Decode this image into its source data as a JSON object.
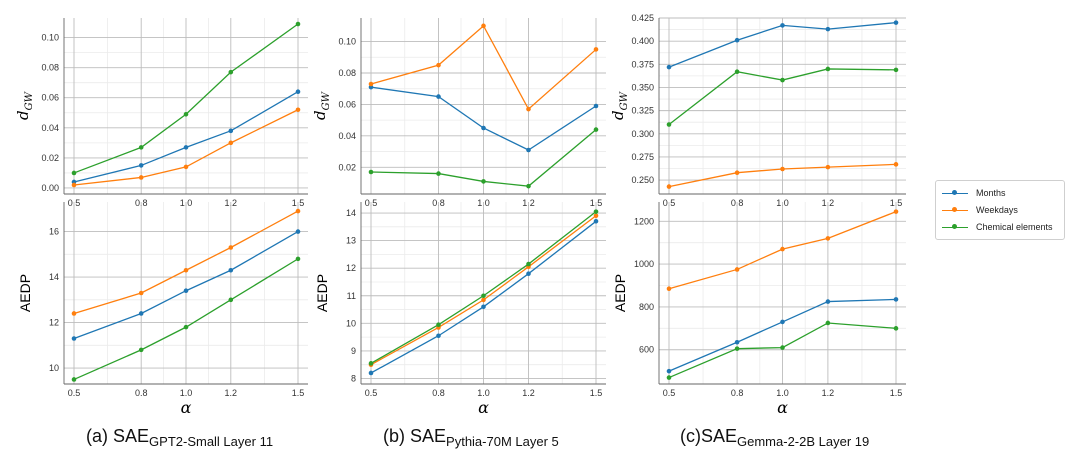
{
  "colors": {
    "months": "#1f77b4",
    "weekdays": "#ff7f0e",
    "chemical": "#2ca02c",
    "grid_major": "#bdbdbd",
    "grid_minor": "#ebebeb"
  },
  "legend": [
    {
      "label": "Months",
      "color": "#1f77b4"
    },
    {
      "label": "Weekdays",
      "color": "#ff7f0e"
    },
    {
      "label": "Chemical elements",
      "color": "#2ca02c"
    }
  ],
  "captions": [
    {
      "prefix": "(a) SAE",
      "sub": "GPT2-Small Layer 11"
    },
    {
      "prefix": "(b) SAE",
      "sub": "Pythia-70M Layer 5"
    },
    {
      "prefix": "(c)SAE",
      "sub": "Gemma-2-2B Layer 19"
    }
  ],
  "chart_data": [
    {
      "type": "line",
      "panel": "a-top",
      "xlabel": "α",
      "ylabel_main": "d",
      "ylabel_sub": "GW",
      "x": [
        0.5,
        0.8,
        1.0,
        1.2,
        1.5
      ],
      "xticks": [
        "0.5",
        "0.8",
        "1.0",
        "1.2",
        "1.5"
      ],
      "ylim": [
        -0.004,
        0.113
      ],
      "yticks": [
        0.0,
        0.02,
        0.04,
        0.06,
        0.08,
        0.1
      ],
      "yticklabels": [
        "0.00",
        "0.02",
        "0.04",
        "0.06",
        "0.08",
        "0.10"
      ],
      "series": [
        {
          "name": "Months",
          "values": [
            0.004,
            0.015,
            0.027,
            0.038,
            0.064
          ]
        },
        {
          "name": "Weekdays",
          "values": [
            0.002,
            0.007,
            0.014,
            0.03,
            0.052
          ]
        },
        {
          "name": "Chemical elements",
          "values": [
            0.01,
            0.027,
            0.049,
            0.077,
            0.109
          ]
        }
      ]
    },
    {
      "type": "line",
      "panel": "a-bottom",
      "xlabel": "α",
      "ylabel_main": "AEDP",
      "ylabel_sub": "",
      "x": [
        0.5,
        0.8,
        1.0,
        1.2,
        1.5
      ],
      "xticks": [
        "0.5",
        "0.8",
        "1.0",
        "1.2",
        "1.5"
      ],
      "ylim": [
        9.3,
        17.3
      ],
      "yticks": [
        10,
        12,
        14,
        16
      ],
      "yticklabels": [
        "10",
        "12",
        "14",
        "16"
      ],
      "series": [
        {
          "name": "Months",
          "values": [
            11.3,
            12.4,
            13.4,
            14.3,
            16.0
          ]
        },
        {
          "name": "Weekdays",
          "values": [
            12.4,
            13.3,
            14.3,
            15.3,
            16.9
          ]
        },
        {
          "name": "Chemical elements",
          "values": [
            9.5,
            10.8,
            11.8,
            13.0,
            14.8
          ]
        }
      ]
    },
    {
      "type": "line",
      "panel": "b-top",
      "xlabel": "α",
      "ylabel_main": "d",
      "ylabel_sub": "GW",
      "x": [
        0.5,
        0.8,
        1.0,
        1.2,
        1.5
      ],
      "xticks": [
        "0.5",
        "0.8",
        "1.0",
        "1.2",
        "1.5"
      ],
      "ylim": [
        0.003,
        0.115
      ],
      "yticks": [
        0.02,
        0.04,
        0.06,
        0.08,
        0.1
      ],
      "yticklabels": [
        "0.02",
        "0.04",
        "0.06",
        "0.08",
        "0.10"
      ],
      "series": [
        {
          "name": "Months",
          "values": [
            0.071,
            0.065,
            0.045,
            0.031,
            0.059
          ]
        },
        {
          "name": "Weekdays",
          "values": [
            0.073,
            0.085,
            0.11,
            0.057,
            0.095
          ]
        },
        {
          "name": "Chemical elements",
          "values": [
            0.017,
            0.016,
            0.011,
            0.008,
            0.044
          ]
        }
      ]
    },
    {
      "type": "line",
      "panel": "b-bottom",
      "xlabel": "α",
      "ylabel_main": "AEDP",
      "ylabel_sub": "",
      "x": [
        0.5,
        0.8,
        1.0,
        1.2,
        1.5
      ],
      "xticks": [
        "0.5",
        "0.8",
        "1.0",
        "1.2",
        "1.5"
      ],
      "ylim": [
        7.8,
        14.4
      ],
      "yticks": [
        8,
        9,
        10,
        11,
        12,
        13,
        14
      ],
      "yticklabels": [
        "8",
        "9",
        "10",
        "11",
        "12",
        "13",
        "14"
      ],
      "series": [
        {
          "name": "Months",
          "values": [
            8.2,
            9.55,
            10.6,
            11.8,
            13.7
          ]
        },
        {
          "name": "Weekdays",
          "values": [
            8.5,
            9.85,
            10.85,
            12.05,
            13.9
          ]
        },
        {
          "name": "Chemical elements",
          "values": [
            8.55,
            9.95,
            11.0,
            12.15,
            14.05
          ]
        }
      ]
    },
    {
      "type": "line",
      "panel": "c-top",
      "xlabel": "α",
      "ylabel_main": "d",
      "ylabel_sub": "GW",
      "x": [
        0.5,
        0.8,
        1.0,
        1.2,
        1.5
      ],
      "xticks": [
        "0.5",
        "0.8",
        "1.0",
        "1.2",
        "1.5"
      ],
      "ylim": [
        0.235,
        0.425
      ],
      "yticks": [
        0.25,
        0.275,
        0.3,
        0.325,
        0.35,
        0.375,
        0.4,
        0.425
      ],
      "yticklabels": [
        "0.250",
        "0.275",
        "0.300",
        "0.325",
        "0.350",
        "0.375",
        "0.400",
        "0.425"
      ],
      "series": [
        {
          "name": "Months",
          "values": [
            0.372,
            0.401,
            0.417,
            0.413,
            0.42
          ]
        },
        {
          "name": "Weekdays",
          "values": [
            0.243,
            0.258,
            0.262,
            0.264,
            0.267
          ]
        },
        {
          "name": "Chemical elements",
          "values": [
            0.31,
            0.367,
            0.358,
            0.37,
            0.369
          ]
        }
      ]
    },
    {
      "type": "line",
      "panel": "c-bottom",
      "xlabel": "α",
      "ylabel_main": "AEDP",
      "ylabel_sub": "",
      "x": [
        0.5,
        0.8,
        1.0,
        1.2,
        1.5
      ],
      "xticks": [
        "0.5",
        "0.8",
        "1.0",
        "1.2",
        "1.5"
      ],
      "ylim": [
        440,
        1290
      ],
      "yticks": [
        600,
        800,
        1000,
        1200
      ],
      "yticklabels": [
        "600",
        "800",
        "1000",
        "1200"
      ],
      "series": [
        {
          "name": "Months",
          "values": [
            500,
            635,
            730,
            825,
            835
          ]
        },
        {
          "name": "Weekdays",
          "values": [
            885,
            975,
            1070,
            1120,
            1245
          ]
        },
        {
          "name": "Chemical elements",
          "values": [
            470,
            605,
            610,
            725,
            700
          ]
        }
      ]
    }
  ]
}
